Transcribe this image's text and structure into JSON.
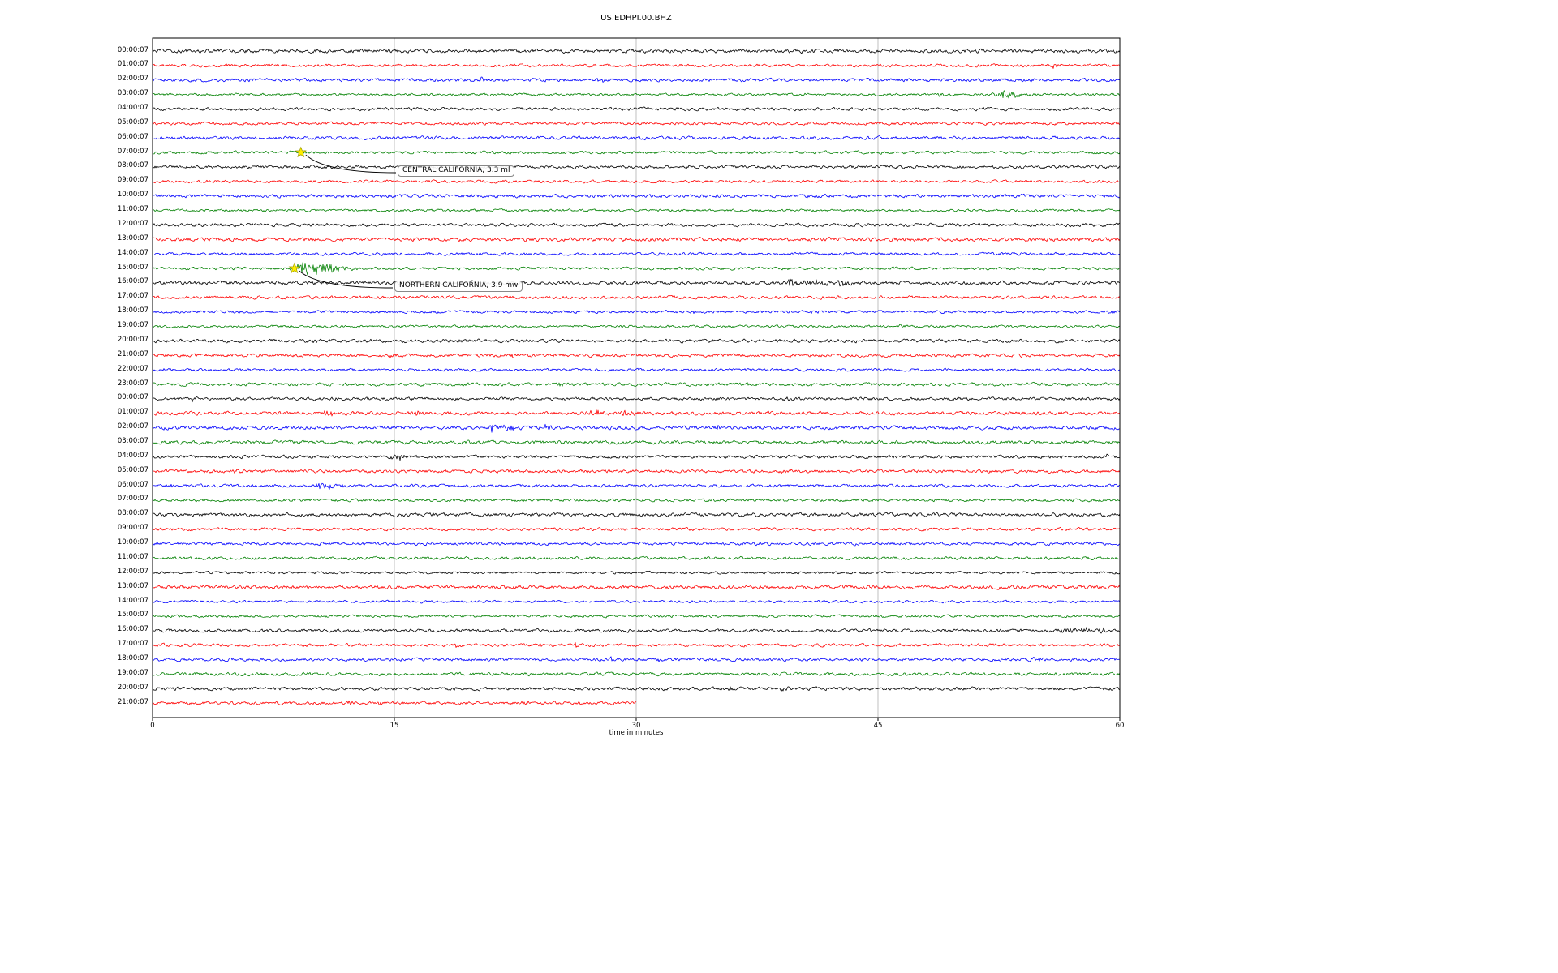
{
  "chart_data": {
    "type": "line",
    "title": "US.EDHPI.00.BHZ",
    "xlabel": "time in minutes",
    "xlim": [
      0,
      60
    ],
    "x_ticks": [
      0,
      15,
      30,
      45,
      60
    ],
    "grid": "vertical",
    "star_color": "#ffee00",
    "trace_colors": [
      "#000000",
      "#ff0000",
      "#0000ff",
      "#008000"
    ],
    "last_row_end_minute": 30,
    "rows": [
      {
        "label": "00:00:07",
        "color": "#000000"
      },
      {
        "label": "01:00:07",
        "color": "#ff0000"
      },
      {
        "label": "02:00:07",
        "color": "#0000ff"
      },
      {
        "label": "03:00:07",
        "color": "#008000"
      },
      {
        "label": "04:00:07",
        "color": "#000000"
      },
      {
        "label": "05:00:07",
        "color": "#ff0000"
      },
      {
        "label": "06:00:07",
        "color": "#0000ff"
      },
      {
        "label": "07:00:07",
        "color": "#008000"
      },
      {
        "label": "08:00:07",
        "color": "#000000"
      },
      {
        "label": "09:00:07",
        "color": "#ff0000"
      },
      {
        "label": "10:00:07",
        "color": "#0000ff"
      },
      {
        "label": "11:00:07",
        "color": "#008000"
      },
      {
        "label": "12:00:07",
        "color": "#000000"
      },
      {
        "label": "13:00:07",
        "color": "#ff0000"
      },
      {
        "label": "14:00:07",
        "color": "#0000ff"
      },
      {
        "label": "15:00:07",
        "color": "#008000"
      },
      {
        "label": "16:00:07",
        "color": "#000000"
      },
      {
        "label": "17:00:07",
        "color": "#ff0000"
      },
      {
        "label": "18:00:07",
        "color": "#0000ff"
      },
      {
        "label": "19:00:07",
        "color": "#008000"
      },
      {
        "label": "20:00:07",
        "color": "#000000"
      },
      {
        "label": "21:00:07",
        "color": "#ff0000"
      },
      {
        "label": "22:00:07",
        "color": "#0000ff"
      },
      {
        "label": "23:00:07",
        "color": "#008000"
      },
      {
        "label": "00:00:07",
        "color": "#000000"
      },
      {
        "label": "01:00:07",
        "color": "#ff0000"
      },
      {
        "label": "02:00:07",
        "color": "#0000ff"
      },
      {
        "label": "03:00:07",
        "color": "#008000"
      },
      {
        "label": "04:00:07",
        "color": "#000000"
      },
      {
        "label": "05:00:07",
        "color": "#ff0000"
      },
      {
        "label": "06:00:07",
        "color": "#0000ff"
      },
      {
        "label": "07:00:07",
        "color": "#008000"
      },
      {
        "label": "08:00:07",
        "color": "#000000"
      },
      {
        "label": "09:00:07",
        "color": "#ff0000"
      },
      {
        "label": "10:00:07",
        "color": "#0000ff"
      },
      {
        "label": "11:00:07",
        "color": "#008000"
      },
      {
        "label": "12:00:07",
        "color": "#000000"
      },
      {
        "label": "13:00:07",
        "color": "#ff0000"
      },
      {
        "label": "14:00:07",
        "color": "#0000ff"
      },
      {
        "label": "15:00:07",
        "color": "#008000"
      },
      {
        "label": "16:00:07",
        "color": "#000000"
      },
      {
        "label": "17:00:07",
        "color": "#ff0000"
      },
      {
        "label": "18:00:07",
        "color": "#0000ff"
      },
      {
        "label": "19:00:07",
        "color": "#008000"
      },
      {
        "label": "20:00:07",
        "color": "#000000"
      },
      {
        "label": "21:00:07",
        "color": "#ff0000"
      }
    ],
    "events_format": "[row_index, minute, amplitude_px, width_minutes]",
    "events": [
      [
        0,
        8.8,
        2.5,
        0.15
      ],
      [
        1,
        55.8,
        2.0,
        0.3
      ],
      [
        2,
        20.4,
        3.0,
        0.2
      ],
      [
        2,
        27.6,
        1.8,
        0.35
      ],
      [
        3,
        40.3,
        2.2,
        0.15
      ],
      [
        3,
        48.8,
        2.8,
        0.2
      ],
      [
        3,
        52.6,
        5.0,
        0.8
      ],
      [
        7,
        9.3,
        1.8,
        0.3
      ],
      [
        8,
        33.2,
        2.4,
        0.12
      ],
      [
        15,
        9.6,
        8.5,
        1.5
      ],
      [
        16,
        39.5,
        5.0,
        0.35
      ],
      [
        16,
        40.8,
        3.2,
        1.1
      ],
      [
        16,
        42.6,
        2.4,
        0.7
      ],
      [
        18,
        33.6,
        2.0,
        0.4
      ],
      [
        18,
        40.8,
        2.8,
        0.3
      ],
      [
        18,
        59.3,
        2.8,
        0.4
      ],
      [
        19,
        46.3,
        2.4,
        0.3
      ],
      [
        20,
        10.0,
        2.4,
        0.2
      ],
      [
        20,
        19.0,
        2.6,
        0.15
      ],
      [
        21,
        14.7,
        2.4,
        0.2
      ],
      [
        21,
        22.3,
        2.4,
        0.2
      ],
      [
        21,
        58.5,
        2.4,
        0.2
      ],
      [
        22,
        0.5,
        2.8,
        0.2
      ],
      [
        23,
        25.2,
        2.4,
        0.2
      ],
      [
        23,
        36.8,
        2.4,
        0.2
      ],
      [
        24,
        2.5,
        2.8,
        0.3
      ],
      [
        24,
        11.3,
        2.4,
        0.2
      ],
      [
        24,
        39.2,
        2.4,
        0.3
      ],
      [
        25,
        10.8,
        3.0,
        0.5
      ],
      [
        25,
        16.2,
        2.8,
        0.5
      ],
      [
        25,
        27.3,
        3.2,
        0.7
      ],
      [
        25,
        29.3,
        3.2,
        0.5
      ],
      [
        25,
        57.7,
        3.0,
        0.12
      ],
      [
        26,
        21.0,
        4.5,
        0.5
      ],
      [
        26,
        21.9,
        4.0,
        0.4
      ],
      [
        26,
        24.3,
        3.5,
        0.3
      ],
      [
        26,
        34.8,
        2.4,
        0.4
      ],
      [
        28,
        15.2,
        3.2,
        0.8
      ],
      [
        28,
        47.6,
        2.4,
        0.2
      ],
      [
        28,
        59.2,
        2.8,
        0.3
      ],
      [
        29,
        5.0,
        2.2,
        0.4
      ],
      [
        29,
        39.0,
        2.4,
        0.4
      ],
      [
        30,
        1.0,
        2.0,
        0.2
      ],
      [
        30,
        10.5,
        4.0,
        0.8
      ],
      [
        38,
        34.2,
        2.0,
        0.12
      ],
      [
        40,
        56.3,
        4.0,
        0.5
      ],
      [
        40,
        57.4,
        3.5,
        0.6
      ],
      [
        40,
        58.8,
        3.0,
        0.3
      ],
      [
        41,
        18.8,
        2.4,
        0.2
      ],
      [
        41,
        24.0,
        2.4,
        0.3
      ],
      [
        41,
        26.2,
        2.4,
        0.2
      ],
      [
        42,
        28.4,
        2.4,
        0.2
      ],
      [
        42,
        31.2,
        2.4,
        0.2
      ],
      [
        42,
        54.6,
        2.8,
        0.5
      ],
      [
        44,
        35.8,
        3.2,
        0.12
      ],
      [
        44,
        39.0,
        3.4,
        0.25
      ],
      [
        45,
        12.2,
        2.4,
        0.2
      ],
      [
        45,
        14.0,
        2.2,
        0.2
      ],
      [
        45,
        23.0,
        2.4,
        0.25
      ],
      [
        45,
        26.5,
        2.4,
        0.2
      ]
    ],
    "annotations": [
      {
        "label": "CENTRAL CALIFORNIA, 3.3 ml",
        "row": 7,
        "minute": 9.2,
        "box_x": 490,
        "box_y": 204
      },
      {
        "label": "NORTHERN CALIFORNIA, 3.9 mw",
        "row": 15,
        "minute": 8.8,
        "box_x": 486,
        "box_y": 346
      }
    ]
  }
}
